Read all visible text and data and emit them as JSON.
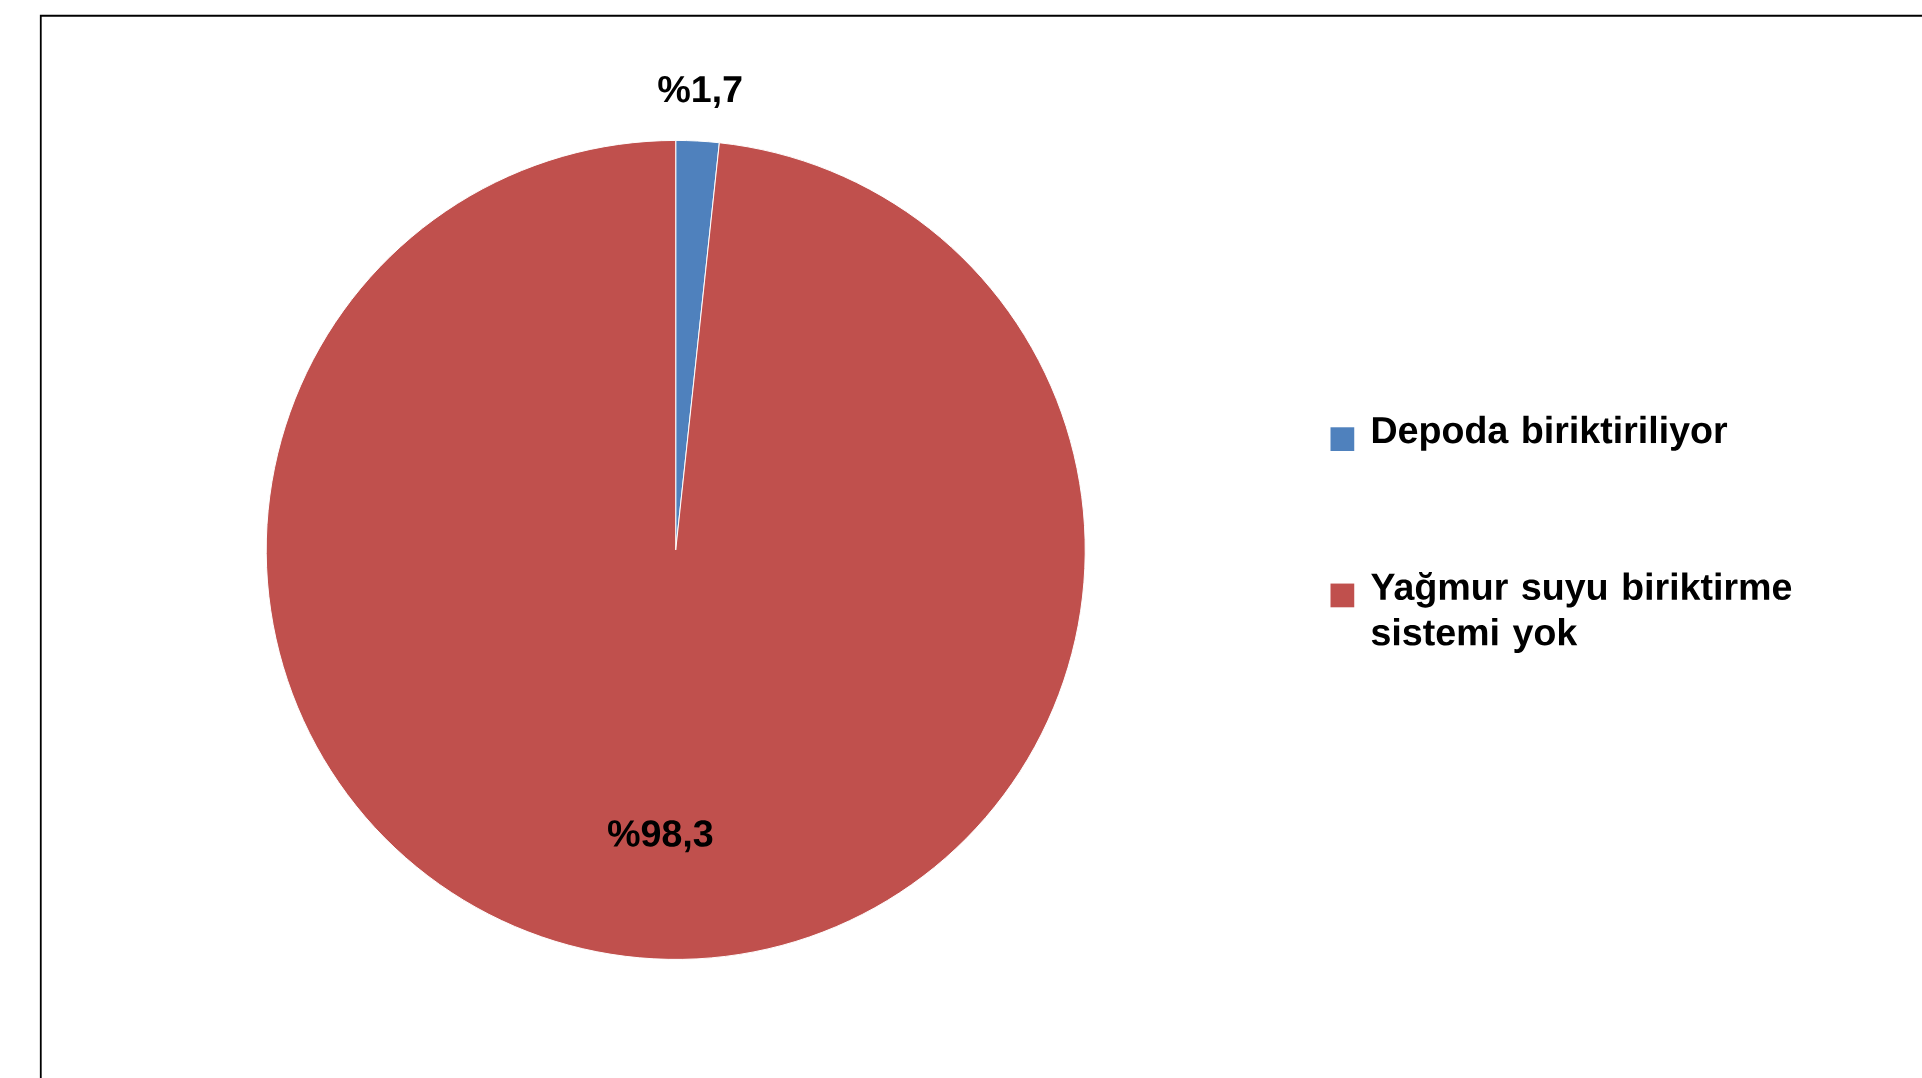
{
  "chart_data": {
    "type": "pie",
    "categories": [
      "Depoda biriktiriliyor",
      "Yağmur suyu biriktirme sistemi yok"
    ],
    "values": [
      1.7,
      98.3
    ],
    "colors": [
      "#4f81bd",
      "#c0504d"
    ],
    "value_labels": [
      "%1,7",
      "%98,3"
    ],
    "legend": "right"
  }
}
